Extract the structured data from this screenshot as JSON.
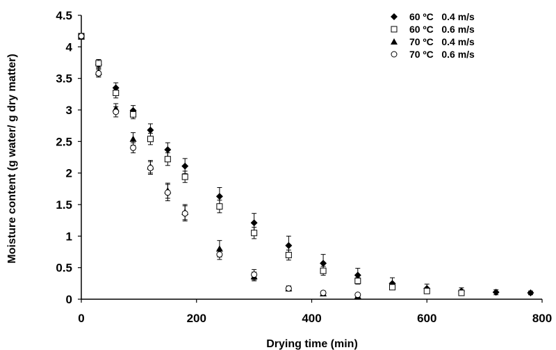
{
  "chart_data": {
    "type": "scatter",
    "xlabel": "Drying time (min)",
    "ylabel": "Moisture content (g water/ g dry matter)",
    "xlim": [
      0,
      800
    ],
    "ylim": [
      0,
      4.5
    ],
    "x_ticks": [
      0,
      200,
      400,
      600,
      800
    ],
    "y_ticks": [
      0,
      0.5,
      1,
      1.5,
      2,
      2.5,
      3,
      3.5,
      4,
      4.5
    ],
    "x_tick_labels": [
      "0",
      "200",
      "400",
      "600",
      "800"
    ],
    "y_tick_labels": [
      "0",
      "0.5",
      "1",
      "1.5",
      "2",
      "2.5",
      "3",
      "3.5",
      "4",
      "4.5"
    ],
    "grid": false,
    "legend_position": "top-right",
    "series": [
      {
        "name": "60 ºC   0.4 m/s",
        "marker": "diamond-filled",
        "x": [
          0,
          30,
          60,
          90,
          120,
          150,
          180,
          240,
          300,
          360,
          420,
          480,
          540,
          600,
          660,
          720,
          780
        ],
        "y": [
          4.17,
          3.72,
          3.35,
          2.99,
          2.68,
          2.37,
          2.11,
          1.63,
          1.21,
          0.85,
          0.57,
          0.38,
          0.25,
          0.17,
          0.13,
          0.11,
          0.1
        ],
        "err": [
          0.04,
          0.06,
          0.08,
          0.08,
          0.1,
          0.11,
          0.12,
          0.14,
          0.15,
          0.15,
          0.14,
          0.11,
          0.09,
          0.07,
          0.05,
          0.04,
          0.03
        ]
      },
      {
        "name": "60 ºC   0.6 m/s",
        "marker": "square-open",
        "x": [
          0,
          30,
          60,
          90,
          120,
          150,
          180,
          240,
          300,
          360,
          420,
          480,
          540,
          600,
          660
        ],
        "y": [
          4.17,
          3.74,
          3.27,
          2.93,
          2.54,
          2.22,
          1.94,
          1.47,
          1.05,
          0.7,
          0.45,
          0.29,
          0.19,
          0.13,
          0.1
        ],
        "err": [
          0.04,
          0.06,
          0.08,
          0.07,
          0.09,
          0.1,
          0.09,
          0.1,
          0.09,
          0.08,
          0.07,
          0.05,
          0.04,
          0.03,
          0.03
        ]
      },
      {
        "name": "70 ºC   0.4 m/s",
        "marker": "triangle-filled",
        "x": [
          0,
          30,
          60,
          90,
          120,
          150,
          180,
          240,
          300,
          360,
          420,
          480
        ],
        "y": [
          4.16,
          3.6,
          3.02,
          2.54,
          2.1,
          1.72,
          1.38,
          0.8,
          0.36,
          0.17,
          0.09,
          0.05
        ],
        "err": [
          0.04,
          0.06,
          0.08,
          0.1,
          0.1,
          0.12,
          0.12,
          0.13,
          0.07,
          0.04,
          0.03,
          0.02
        ]
      },
      {
        "name": "70 ºC   0.6 m/s",
        "marker": "circle-open",
        "x": [
          0,
          30,
          60,
          90,
          120,
          150,
          180,
          240,
          300,
          360,
          420,
          480
        ],
        "y": [
          4.17,
          3.58,
          2.97,
          2.4,
          2.08,
          1.69,
          1.36,
          0.71,
          0.39,
          0.17,
          0.1,
          0.07
        ],
        "err": [
          0.04,
          0.06,
          0.08,
          0.08,
          0.1,
          0.13,
          0.12,
          0.08,
          0.08,
          0.04,
          0.03,
          0.02
        ]
      }
    ]
  }
}
